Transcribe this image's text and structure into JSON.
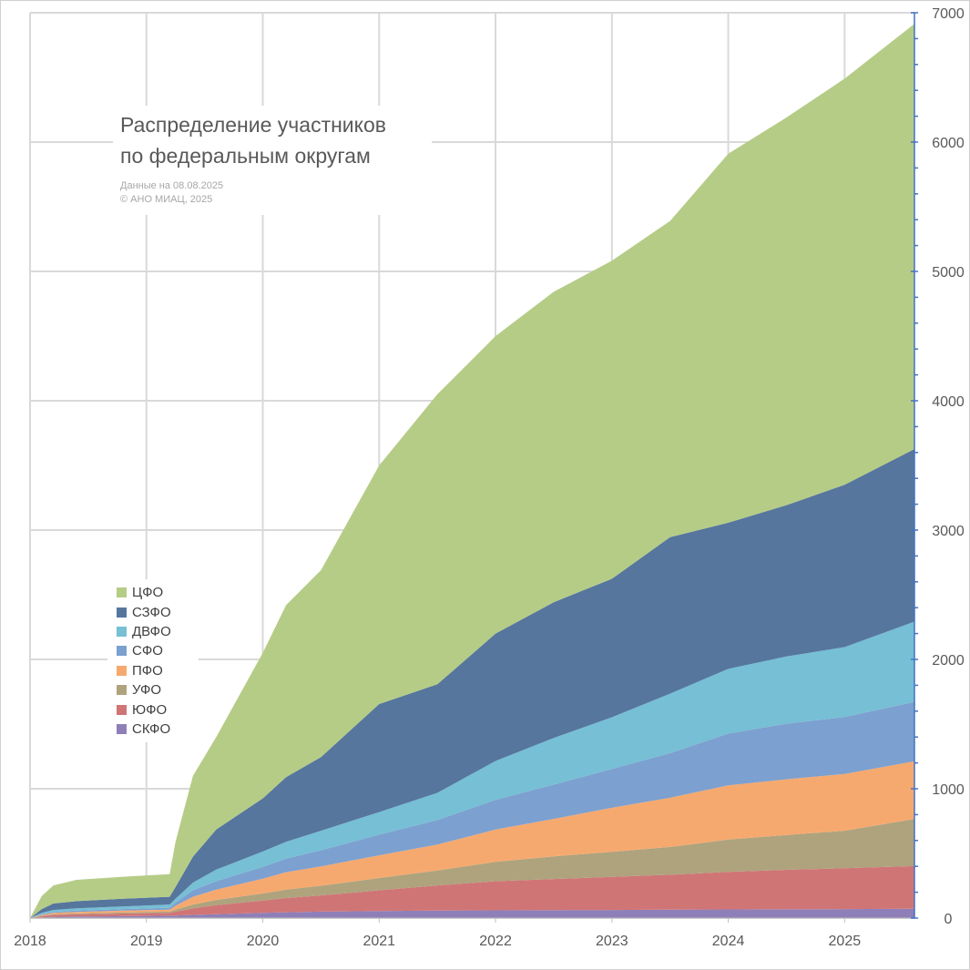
{
  "chart_data": {
    "type": "area",
    "stacked": true,
    "title": "Распределение участников по федеральным округам",
    "title_lines": [
      "Распределение участников",
      "по федеральным округам"
    ],
    "subtitle_lines": [
      "Данные на 08.08.2025",
      "© АНО МИАЦ, 2025"
    ],
    "x": [
      2018.0,
      2018.1,
      2018.2,
      2018.4,
      2018.8,
      2019.2,
      2019.25,
      2019.4,
      2019.6,
      2020.0,
      2020.2,
      2020.5,
      2021.0,
      2021.5,
      2022.0,
      2022.5,
      2023.0,
      2023.5,
      2024.0,
      2024.5,
      2025.0,
      2025.6
    ],
    "x_ticks": [
      2018,
      2019,
      2020,
      2021,
      2022,
      2023,
      2024,
      2025
    ],
    "x_tick_labels": [
      "2018",
      "2019",
      "2020",
      "2021",
      "2022",
      "2023",
      "2024",
      "2025"
    ],
    "xlim": [
      2018.0,
      2025.6
    ],
    "ylim": [
      0,
      7000
    ],
    "y_ticks": [
      0,
      1000,
      2000,
      3000,
      4000,
      5000,
      6000,
      7000
    ],
    "y_tick_labels": [
      "0",
      "1000",
      "2000",
      "3000",
      "4000",
      "5000",
      "6000",
      "7000"
    ],
    "y_axis_side": "right",
    "grid": true,
    "legend_position": "left",
    "series": [
      {
        "name": "СКФО",
        "color": "#8f7fb8",
        "values": [
          0,
          5,
          10,
          12,
          15,
          18,
          20,
          25,
          30,
          40,
          45,
          50,
          55,
          58,
          60,
          62,
          63,
          65,
          67,
          68,
          70,
          72
        ]
      },
      {
        "name": "ЮФО",
        "color": "#d07576",
        "values": [
          0,
          10,
          15,
          18,
          20,
          22,
          30,
          50,
          70,
          95,
          110,
          125,
          160,
          195,
          225,
          240,
          255,
          270,
          290,
          305,
          315,
          330
        ]
      },
      {
        "name": "УФО",
        "color": "#aea37d",
        "values": [
          0,
          5,
          5,
          6,
          8,
          10,
          15,
          30,
          40,
          55,
          65,
          75,
          95,
          115,
          150,
          175,
          195,
          215,
          250,
          270,
          290,
          365
        ]
      },
      {
        "name": "ПФО",
        "color": "#f6a96f",
        "values": [
          0,
          5,
          10,
          12,
          15,
          15,
          30,
          60,
          80,
          115,
          135,
          150,
          175,
          200,
          250,
          290,
          340,
          380,
          420,
          430,
          440,
          445
        ]
      },
      {
        "name": "СФО",
        "color": "#7ca0cf",
        "values": [
          0,
          5,
          8,
          10,
          12,
          15,
          25,
          50,
          65,
          90,
          105,
          125,
          160,
          190,
          230,
          265,
          300,
          345,
          400,
          430,
          440,
          460
        ]
      },
      {
        "name": "ДВФО",
        "color": "#76bfd5",
        "values": [
          0,
          10,
          15,
          18,
          20,
          25,
          30,
          60,
          90,
          120,
          130,
          150,
          175,
          210,
          300,
          360,
          400,
          460,
          500,
          520,
          540,
          620
        ]
      },
      {
        "name": "СЗФО",
        "color": "#56769d",
        "values": [
          0,
          30,
          50,
          55,
          60,
          60,
          90,
          200,
          310,
          410,
          500,
          570,
          835,
          840,
          985,
          1050,
          1070,
          1210,
          1130,
          1170,
          1255,
          1335
        ]
      },
      {
        "name": "ЦФО",
        "color": "#b5cc87",
        "values": [
          0,
          100,
          140,
          165,
          170,
          175,
          350,
          625,
          715,
          1125,
          1330,
          1445,
          1845,
          2242,
          2300,
          2400,
          2460,
          2445,
          2853,
          2997,
          3140,
          3288
        ]
      }
    ]
  }
}
